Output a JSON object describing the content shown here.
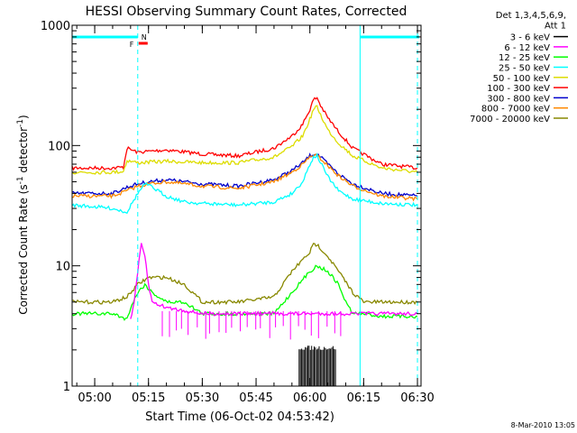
{
  "chart_data": {
    "type": "line",
    "title": "HESSI Observing Summary Count Rates, Corrected",
    "xlabel": "Start Time (06-Oct-02 04:53:42)",
    "ylabel_main": "Corrected Count Rate (s",
    "ylabel_sup1": "-1",
    "ylabel_mid": " detector",
    "ylabel_sup2": "-1",
    "ylabel_end": ")",
    "y_scale": "log",
    "ylim": [
      1,
      1000
    ],
    "xlim": [
      "04:53:42",
      "06:31:00"
    ],
    "x_ticks": [
      "05:00",
      "05:15",
      "05:30",
      "05:45",
      "06:00",
      "06:15",
      "06:30"
    ],
    "y_ticks": [
      "1",
      "10",
      "100",
      "1000"
    ],
    "legend": {
      "position": "top-right",
      "header1": "Det 1,3,4,5,6,9,",
      "header2": "Att 1",
      "entries": [
        {
          "name": "3 - 6 keV",
          "color": "#000000"
        },
        {
          "name": "6 - 12 keV",
          "color": "#ff00ff"
        },
        {
          "name": "12 - 25 keV",
          "color": "#00ff00"
        },
        {
          "name": "25 - 50 keV",
          "color": "#00ffff"
        },
        {
          "name": "50 - 100 keV",
          "color": "#dddd00"
        },
        {
          "name": "100 - 300 keV",
          "color": "#ff0000"
        },
        {
          "name": "300 - 800 keV",
          "color": "#0000cc"
        },
        {
          "name": "800 - 7000 keV",
          "color": "#ff8800"
        },
        {
          "name": "7000 - 20000 keV",
          "color": "#888800"
        }
      ]
    },
    "flags": {
      "F_label": "F",
      "N_label": "N",
      "F_color": "#ff0000",
      "N_color": "#00ffff"
    },
    "series": [
      {
        "name": "100 - 300 keV",
        "color": "#ff0000",
        "x": [
          "04:53:42",
          "05:05",
          "05:08",
          "05:09",
          "05:12",
          "05:20",
          "05:30",
          "05:40",
          "05:50",
          "05:55",
          "05:58",
          "06:00",
          "06:01",
          "06:02",
          "06:03",
          "06:05",
          "06:08",
          "06:12",
          "06:20",
          "06:30"
        ],
        "y": [
          65,
          65,
          66,
          95,
          88,
          92,
          85,
          82,
          95,
          120,
          150,
          200,
          240,
          250,
          215,
          170,
          130,
          95,
          70,
          65
        ]
      },
      {
        "name": "50 - 100 keV",
        "color": "#dddd00",
        "x": [
          "04:53:42",
          "05:05",
          "05:08",
          "05:09",
          "05:12",
          "05:20",
          "05:30",
          "05:40",
          "05:50",
          "05:55",
          "05:58",
          "06:00",
          "06:01",
          "06:02",
          "06:03",
          "06:05",
          "06:08",
          "06:12",
          "06:20",
          "06:30"
        ],
        "y": [
          60,
          60,
          61,
          75,
          72,
          74,
          72,
          72,
          80,
          98,
          120,
          165,
          200,
          210,
          180,
          135,
          105,
          82,
          65,
          60
        ]
      },
      {
        "name": "300 - 800 keV",
        "color": "#0000cc",
        "x": [
          "04:53:42",
          "05:05",
          "05:09",
          "05:12",
          "05:15",
          "05:20",
          "05:30",
          "05:40",
          "05:50",
          "05:55",
          "05:58",
          "06:00",
          "06:01",
          "06:02",
          "06:03",
          "06:05",
          "06:08",
          "06:12",
          "06:20",
          "06:30"
        ],
        "y": [
          40,
          40,
          45,
          48,
          50,
          52,
          48,
          46,
          52,
          62,
          72,
          82,
          85,
          85,
          80,
          70,
          58,
          48,
          40,
          38
        ]
      },
      {
        "name": "800 - 7000 keV",
        "color": "#ff8800",
        "x": [
          "04:53:42",
          "05:05",
          "05:09",
          "05:12",
          "05:15",
          "05:20",
          "05:30",
          "05:40",
          "05:50",
          "05:55",
          "05:58",
          "06:00",
          "06:01",
          "06:02",
          "06:03",
          "06:05",
          "06:08",
          "06:12",
          "06:20",
          "06:30"
        ],
        "y": [
          38,
          38,
          42,
          46,
          48,
          50,
          46,
          44,
          50,
          60,
          70,
          80,
          83,
          82,
          78,
          68,
          56,
          46,
          38,
          36
        ]
      },
      {
        "name": "25 - 50 keV",
        "color": "#00ffff",
        "x": [
          "04:53:42",
          "05:00",
          "05:05",
          "05:09",
          "05:12",
          "05:14",
          "05:16",
          "05:20",
          "05:25",
          "05:30",
          "05:40",
          "05:50",
          "05:55",
          "05:58",
          "06:00",
          "06:01",
          "06:02",
          "06:03",
          "06:05",
          "06:08",
          "06:12",
          "06:20",
          "06:30"
        ],
        "y": [
          32,
          31,
          30,
          28,
          40,
          48,
          45,
          38,
          34,
          33,
          32,
          34,
          40,
          50,
          70,
          80,
          82,
          72,
          55,
          42,
          36,
          33,
          32
        ]
      },
      {
        "name": "7000 - 20000 keV",
        "color": "#888800",
        "x": [
          "04:53:42",
          "05:05",
          "05:09",
          "05:12",
          "05:15",
          "05:20",
          "05:25",
          "05:30",
          "05:40",
          "05:50",
          "05:55",
          "06:00",
          "06:01",
          "06:02",
          "06:03",
          "06:05",
          "06:08",
          "06:12",
          "06:15",
          "06:20",
          "06:30"
        ],
        "y": [
          5,
          5,
          5.5,
          7,
          8,
          8,
          7,
          5,
          5,
          5.5,
          9,
          13,
          15,
          15,
          14,
          12,
          9,
          6,
          5,
          5,
          5
        ]
      },
      {
        "name": "12 - 25 keV",
        "color": "#00ff00",
        "x": [
          "04:53:42",
          "05:05",
          "05:09",
          "05:10",
          "05:12",
          "05:14",
          "05:16",
          "05:20",
          "05:25",
          "05:30",
          "05:40",
          "05:50",
          "05:55",
          "06:00",
          "06:02",
          "06:05",
          "06:08",
          "06:10",
          "06:12",
          "06:15",
          "06:20",
          "06:30"
        ],
        "y": [
          4,
          4,
          3.6,
          4.5,
          6,
          7,
          6,
          5,
          5,
          4,
          4,
          4,
          6,
          9,
          10,
          9,
          7,
          5,
          4,
          4,
          3.8,
          3.8
        ]
      },
      {
        "name": "6 - 12 keV",
        "color": "#ff00ff",
        "x": [
          "04:53:42",
          "05:09",
          "05:10",
          "05:11",
          "05:12",
          "05:13",
          "05:14",
          "05:15",
          "05:16",
          "05:20",
          "05:30",
          "05:40",
          "05:50",
          "06:00",
          "06:10",
          "06:15",
          "06:20",
          "06:30"
        ],
        "y": [
          null,
          null,
          3.5,
          5,
          9,
          15,
          12,
          7,
          5,
          4.5,
          4,
          4,
          4,
          4,
          4,
          4,
          4,
          4
        ]
      }
    ]
  },
  "footer": {
    "date_stamp": "8-Mar-2010 13:05"
  }
}
